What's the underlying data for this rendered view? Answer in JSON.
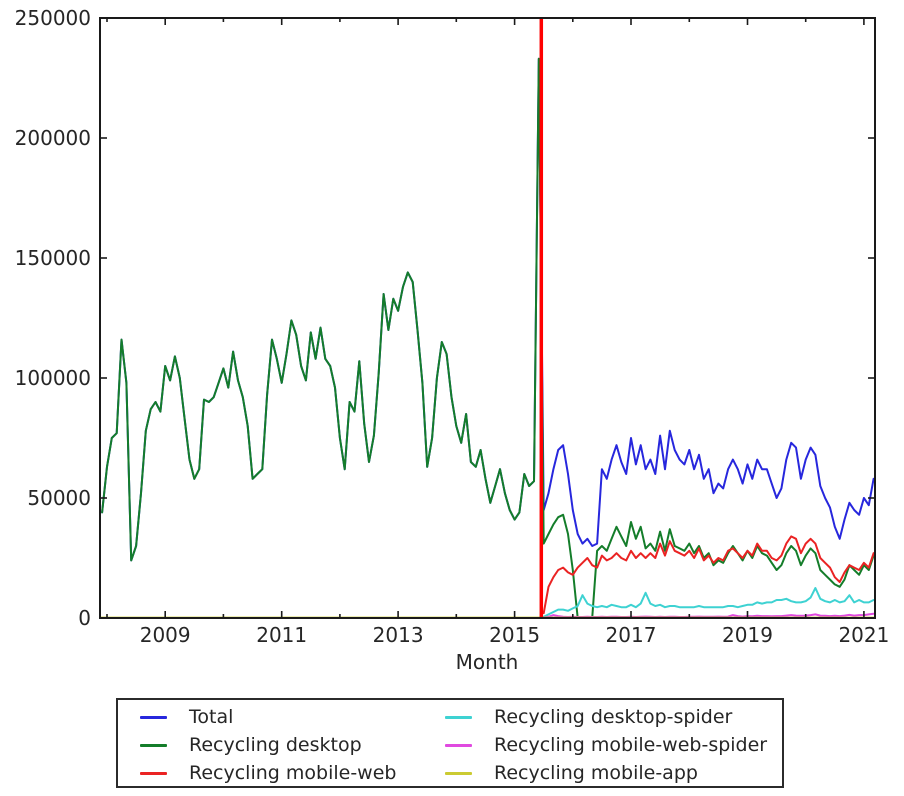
{
  "chart_data": {
    "type": "line",
    "title": "",
    "xlabel": "Month",
    "ylabel": "",
    "grid": false,
    "legend": {
      "position": "bottom",
      "columns": 2,
      "order": "column-major"
    },
    "x_axis": {
      "range": [
        2007.88,
        2021.19
      ],
      "ticks": [
        2009,
        2011,
        2013,
        2015,
        2017,
        2019,
        2021
      ],
      "minor_ticks": [
        2008,
        2010,
        2012,
        2014,
        2016,
        2018,
        2020
      ]
    },
    "y_axis": {
      "range": [
        0,
        250000
      ],
      "ticks": [
        0,
        50000,
        100000,
        150000,
        200000,
        250000
      ]
    },
    "vline": {
      "x": 2015.4583,
      "color": "#ff0000"
    },
    "series": [
      {
        "name": "Total",
        "color": "#2727dd",
        "start": "2007-12",
        "values": [
          44000,
          63000,
          75000,
          77000,
          116000,
          98000,
          24000,
          30000,
          52000,
          78000,
          87000,
          90000,
          86000,
          105000,
          99000,
          109000,
          100000,
          83000,
          66000,
          58000,
          62000,
          91000,
          90000,
          92000,
          98000,
          104000,
          96000,
          111000,
          99000,
          92000,
          80000,
          58000,
          60000,
          62000,
          93000,
          116000,
          108000,
          98000,
          110000,
          124000,
          118000,
          105000,
          99000,
          119000,
          108000,
          121000,
          108000,
          105000,
          96000,
          75000,
          62000,
          90000,
          86000,
          107000,
          81000,
          65000,
          76000,
          102000,
          135000,
          120000,
          133000,
          128000,
          138000,
          144000,
          140000,
          120000,
          98000,
          63000,
          75000,
          100000,
          115000,
          110000,
          92000,
          80000,
          73000,
          85000,
          65000,
          63000,
          70000,
          58000,
          48000,
          55000,
          62000,
          52000,
          45000,
          41000,
          44000,
          60000,
          55000,
          57000,
          233000,
          45000,
          52000,
          62000,
          70000,
          72000,
          60000,
          45000,
          35000,
          31000,
          33000,
          30000,
          31000,
          62000,
          58000,
          66000,
          72000,
          65000,
          60000,
          75000,
          64000,
          72000,
          62000,
          66000,
          60000,
          76000,
          62000,
          78000,
          70000,
          66000,
          64000,
          70000,
          62000,
          68000,
          58000,
          62000,
          52000,
          56000,
          54000,
          62000,
          66000,
          62000,
          56000,
          64000,
          58000,
          66000,
          62000,
          62000,
          56000,
          50000,
          54000,
          66000,
          73000,
          71000,
          58000,
          66000,
          71000,
          68000,
          55000,
          50000,
          46000,
          38000,
          33000,
          41000,
          48000,
          45000,
          43000,
          50000,
          47000,
          58000
        ]
      },
      {
        "name": "Recycling desktop",
        "color": "#147d2a",
        "start": "2007-12",
        "values": [
          44000,
          63000,
          75000,
          77000,
          116000,
          98000,
          24000,
          30000,
          52000,
          78000,
          87000,
          90000,
          86000,
          105000,
          99000,
          109000,
          100000,
          83000,
          66000,
          58000,
          62000,
          91000,
          90000,
          92000,
          98000,
          104000,
          96000,
          111000,
          99000,
          92000,
          80000,
          58000,
          60000,
          62000,
          93000,
          116000,
          108000,
          98000,
          110000,
          124000,
          118000,
          105000,
          99000,
          119000,
          108000,
          121000,
          108000,
          105000,
          96000,
          75000,
          62000,
          90000,
          86000,
          107000,
          81000,
          65000,
          76000,
          102000,
          135000,
          120000,
          133000,
          128000,
          138000,
          144000,
          140000,
          120000,
          98000,
          63000,
          75000,
          100000,
          115000,
          110000,
          92000,
          80000,
          73000,
          85000,
          65000,
          63000,
          70000,
          58000,
          48000,
          55000,
          62000,
          52000,
          45000,
          41000,
          44000,
          60000,
          55000,
          57000,
          233000,
          31000,
          35000,
          39000,
          42000,
          43000,
          35000,
          20000,
          0,
          0,
          0,
          0,
          28000,
          30000,
          28000,
          33000,
          38000,
          34000,
          30000,
          40000,
          33000,
          38000,
          29000,
          31000,
          28000,
          36000,
          28000,
          37000,
          30000,
          29000,
          28000,
          31000,
          27000,
          30000,
          25000,
          27000,
          22000,
          24000,
          23000,
          27000,
          30000,
          27000,
          24000,
          28000,
          25000,
          30000,
          27000,
          26000,
          23000,
          20000,
          22000,
          27000,
          30000,
          28000,
          22000,
          26000,
          29000,
          27000,
          20000,
          18000,
          16000,
          14000,
          13000,
          16000,
          22000,
          20000,
          18000,
          22000,
          20000,
          26000
        ]
      },
      {
        "name": "Recycling mobile-web",
        "color": "#ea2323",
        "start": "2015-07",
        "values": [
          2000,
          13000,
          17000,
          20000,
          21000,
          19000,
          18000,
          21000,
          23000,
          25000,
          22000,
          21000,
          26000,
          24000,
          25000,
          27000,
          25000,
          24000,
          28000,
          25000,
          27000,
          25000,
          27000,
          25000,
          31000,
          26000,
          32000,
          28000,
          27000,
          26000,
          28000,
          25000,
          29000,
          24000,
          26000,
          23000,
          25000,
          24000,
          28000,
          29000,
          27000,
          25000,
          28000,
          26000,
          31000,
          28000,
          28000,
          25000,
          24000,
          26000,
          31000,
          34000,
          33000,
          27000,
          31000,
          33000,
          31000,
          25000,
          23000,
          21000,
          17000,
          15000,
          19000,
          22000,
          21000,
          20000,
          23000,
          21000,
          27000
        ]
      },
      {
        "name": "Recycling desktop-spider",
        "color": "#3ed2d2",
        "start": "2015-07",
        "values": [
          500,
          1500,
          2500,
          3500,
          3500,
          3000,
          4000,
          5000,
          9500,
          6000,
          5000,
          4500,
          5000,
          4500,
          5500,
          5000,
          4500,
          4500,
          5500,
          4500,
          6000,
          10500,
          6000,
          5000,
          5500,
          4500,
          5000,
          5000,
          4500,
          4500,
          4500,
          4500,
          5000,
          4500,
          4500,
          4500,
          4500,
          4500,
          5000,
          5000,
          4500,
          5000,
          5500,
          5500,
          6500,
          6000,
          6500,
          6500,
          7500,
          7500,
          8000,
          7000,
          6500,
          6500,
          7000,
          8500,
          12500,
          8000,
          7000,
          6500,
          7500,
          6500,
          7000,
          9500,
          6500,
          7500,
          6500,
          6500,
          7500
        ]
      },
      {
        "name": "Recycling mobile-web-spider",
        "color": "#e04ae0",
        "start": "2015-07",
        "values": [
          200,
          500,
          1200,
          800,
          500,
          400,
          500,
          400,
          400,
          500,
          400,
          400,
          500,
          400,
          500,
          500,
          400,
          400,
          500,
          400,
          500,
          600,
          500,
          400,
          500,
          400,
          500,
          500,
          400,
          400,
          500,
          500,
          600,
          500,
          500,
          500,
          600,
          500,
          600,
          1200,
          800,
          600,
          800,
          700,
          900,
          800,
          800,
          700,
          800,
          800,
          1000,
          1200,
          1000,
          900,
          1000,
          1200,
          1500,
          1000,
          900,
          800,
          900,
          800,
          1000,
          1300,
          1000,
          1200,
          1200,
          1500,
          1800
        ]
      },
      {
        "name": "Recycling mobile-app",
        "color": "#cbcb32",
        "start": "2007-12",
        "constant": 150
      }
    ]
  }
}
